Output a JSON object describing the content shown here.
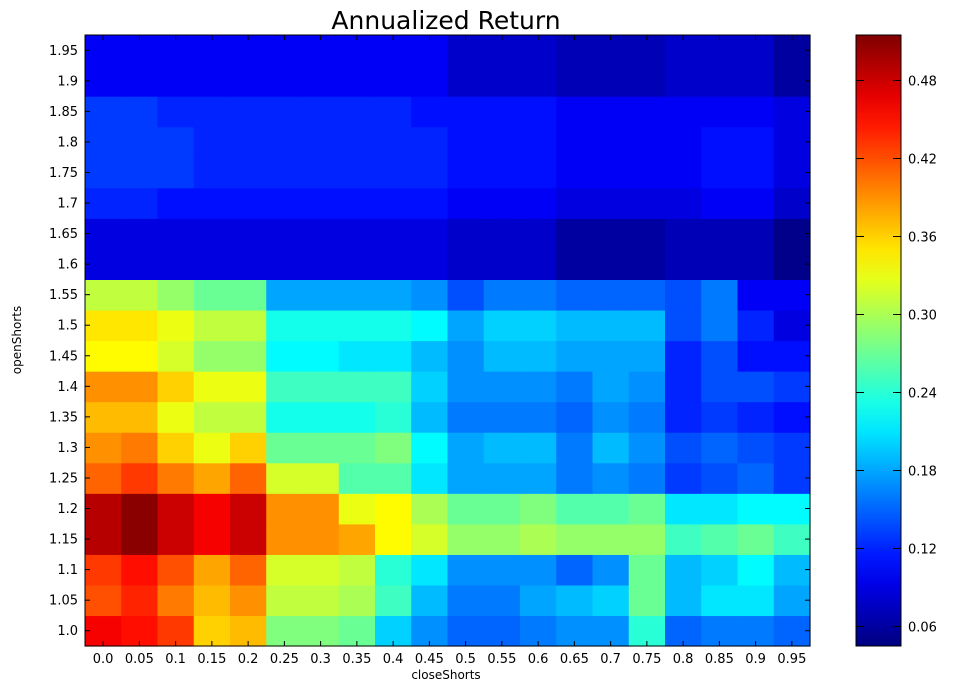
{
  "chart_data": {
    "type": "heatmap",
    "title": "Annualized Return",
    "xlabel": "closeShorts",
    "ylabel": "openShorts",
    "x": [
      "0.0",
      "0.05",
      "0.1",
      "0.15",
      "0.2",
      "0.25",
      "0.3",
      "0.35",
      "0.4",
      "0.45",
      "0.5",
      "0.55",
      "0.6",
      "0.65",
      "0.7",
      "0.75",
      "0.8",
      "0.85",
      "0.9",
      "0.95"
    ],
    "y": [
      "1.0",
      "1.05",
      "1.1",
      "1.15",
      "1.2",
      "1.25",
      "1.3",
      "1.35",
      "1.4",
      "1.45",
      "1.5",
      "1.55",
      "1.6",
      "1.65",
      "1.7",
      "1.75",
      "1.8",
      "1.85",
      "1.9",
      "1.95"
    ],
    "colorbar": {
      "ticks": [
        "0.06",
        "0.12",
        "0.18",
        "0.24",
        "0.30",
        "0.36",
        "0.42",
        "0.48"
      ],
      "range": [
        0.045,
        0.515
      ],
      "colormap": "jet"
    },
    "values": [
      [
        0.46,
        0.45,
        0.43,
        0.36,
        0.37,
        0.28,
        0.28,
        0.27,
        0.2,
        0.17,
        0.15,
        0.15,
        0.16,
        0.17,
        0.17,
        0.24,
        0.15,
        0.16,
        0.16,
        0.15
      ],
      [
        0.42,
        0.44,
        0.4,
        0.37,
        0.39,
        0.31,
        0.31,
        0.3,
        0.25,
        0.19,
        0.16,
        0.16,
        0.18,
        0.19,
        0.2,
        0.27,
        0.19,
        0.21,
        0.21,
        0.18
      ],
      [
        0.43,
        0.45,
        0.42,
        0.38,
        0.41,
        0.32,
        0.32,
        0.31,
        0.24,
        0.21,
        0.17,
        0.17,
        0.17,
        0.15,
        0.17,
        0.27,
        0.19,
        0.2,
        0.22,
        0.19
      ],
      [
        0.49,
        0.51,
        0.48,
        0.46,
        0.48,
        0.39,
        0.39,
        0.38,
        0.34,
        0.32,
        0.29,
        0.29,
        0.3,
        0.29,
        0.29,
        0.29,
        0.25,
        0.26,
        0.27,
        0.25
      ],
      [
        0.49,
        0.51,
        0.48,
        0.46,
        0.48,
        0.39,
        0.39,
        0.33,
        0.34,
        0.3,
        0.27,
        0.27,
        0.28,
        0.26,
        0.26,
        0.27,
        0.21,
        0.21,
        0.22,
        0.22
      ],
      [
        0.41,
        0.43,
        0.4,
        0.38,
        0.41,
        0.32,
        0.32,
        0.26,
        0.26,
        0.21,
        0.18,
        0.18,
        0.18,
        0.16,
        0.17,
        0.16,
        0.13,
        0.14,
        0.15,
        0.13
      ],
      [
        0.39,
        0.4,
        0.36,
        0.33,
        0.36,
        0.27,
        0.27,
        0.27,
        0.28,
        0.22,
        0.18,
        0.19,
        0.19,
        0.16,
        0.19,
        0.17,
        0.14,
        0.15,
        0.14,
        0.13
      ],
      [
        0.37,
        0.37,
        0.33,
        0.31,
        0.31,
        0.23,
        0.23,
        0.23,
        0.24,
        0.19,
        0.16,
        0.16,
        0.16,
        0.15,
        0.17,
        0.16,
        0.12,
        0.13,
        0.12,
        0.11
      ],
      [
        0.39,
        0.39,
        0.36,
        0.33,
        0.33,
        0.25,
        0.25,
        0.25,
        0.25,
        0.2,
        0.17,
        0.17,
        0.17,
        0.16,
        0.18,
        0.17,
        0.12,
        0.14,
        0.14,
        0.13
      ],
      [
        0.34,
        0.34,
        0.32,
        0.29,
        0.29,
        0.22,
        0.22,
        0.21,
        0.21,
        0.19,
        0.17,
        0.19,
        0.19,
        0.18,
        0.18,
        0.18,
        0.12,
        0.14,
        0.11,
        0.11
      ],
      [
        0.35,
        0.35,
        0.33,
        0.31,
        0.31,
        0.23,
        0.23,
        0.23,
        0.23,
        0.22,
        0.18,
        0.2,
        0.2,
        0.19,
        0.19,
        0.19,
        0.14,
        0.16,
        0.12,
        0.09
      ],
      [
        0.31,
        0.31,
        0.29,
        0.27,
        0.27,
        0.18,
        0.18,
        0.18,
        0.18,
        0.17,
        0.14,
        0.16,
        0.16,
        0.15,
        0.15,
        0.15,
        0.14,
        0.16,
        0.1,
        0.1
      ],
      [
        0.09,
        0.09,
        0.09,
        0.09,
        0.09,
        0.09,
        0.09,
        0.09,
        0.09,
        0.09,
        0.08,
        0.08,
        0.08,
        0.06,
        0.06,
        0.06,
        0.07,
        0.07,
        0.07,
        0.05
      ],
      [
        0.09,
        0.09,
        0.09,
        0.09,
        0.09,
        0.09,
        0.09,
        0.09,
        0.09,
        0.09,
        0.08,
        0.08,
        0.08,
        0.06,
        0.06,
        0.06,
        0.07,
        0.07,
        0.07,
        0.05
      ],
      [
        0.12,
        0.12,
        0.11,
        0.11,
        0.11,
        0.11,
        0.11,
        0.11,
        0.11,
        0.11,
        0.1,
        0.1,
        0.1,
        0.09,
        0.09,
        0.09,
        0.09,
        0.1,
        0.1,
        0.08
      ],
      [
        0.13,
        0.13,
        0.13,
        0.12,
        0.12,
        0.12,
        0.12,
        0.12,
        0.12,
        0.12,
        0.11,
        0.11,
        0.11,
        0.1,
        0.1,
        0.1,
        0.1,
        0.11,
        0.11,
        0.09
      ],
      [
        0.13,
        0.13,
        0.13,
        0.12,
        0.12,
        0.12,
        0.12,
        0.12,
        0.12,
        0.12,
        0.11,
        0.11,
        0.11,
        0.1,
        0.1,
        0.1,
        0.1,
        0.11,
        0.11,
        0.09
      ],
      [
        0.13,
        0.13,
        0.12,
        0.12,
        0.12,
        0.12,
        0.12,
        0.12,
        0.12,
        0.11,
        0.11,
        0.11,
        0.11,
        0.1,
        0.1,
        0.1,
        0.1,
        0.1,
        0.1,
        0.09
      ],
      [
        0.1,
        0.1,
        0.1,
        0.1,
        0.1,
        0.1,
        0.1,
        0.1,
        0.1,
        0.1,
        0.08,
        0.08,
        0.08,
        0.07,
        0.07,
        0.07,
        0.08,
        0.08,
        0.08,
        0.06
      ],
      [
        0.1,
        0.1,
        0.1,
        0.1,
        0.1,
        0.1,
        0.1,
        0.1,
        0.1,
        0.1,
        0.08,
        0.08,
        0.08,
        0.07,
        0.07,
        0.07,
        0.08,
        0.08,
        0.08,
        0.06
      ]
    ]
  }
}
